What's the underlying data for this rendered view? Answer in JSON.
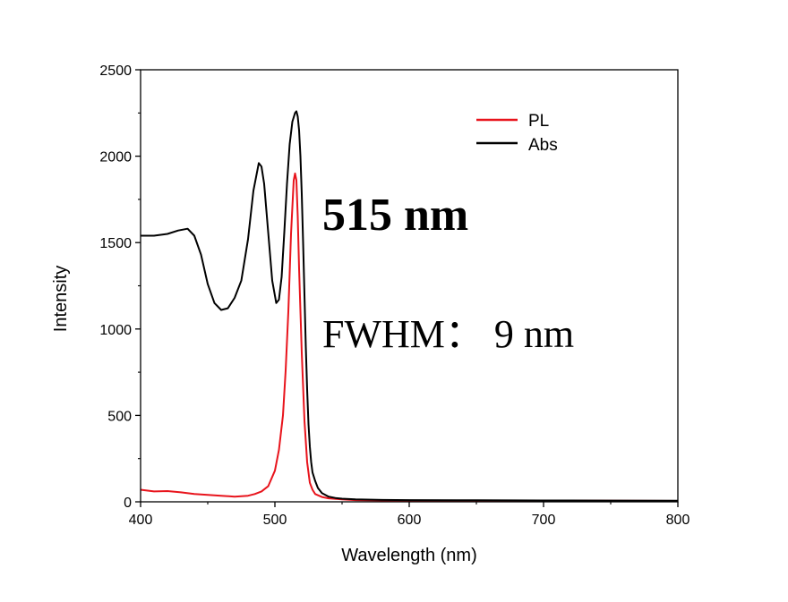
{
  "chart_data": {
    "type": "line",
    "title": "",
    "xlabel": "Wavelength (nm)",
    "ylabel": "Intensity",
    "xlim": [
      400,
      800
    ],
    "ylim": [
      0,
      2500
    ],
    "xticks": [
      400,
      500,
      600,
      700,
      800
    ],
    "yticks": [
      0,
      500,
      1000,
      1500,
      2000,
      2500
    ],
    "grid": false,
    "legend_position": "top-right",
    "annotations": [
      "515 nm",
      "FWHM： 9 nm"
    ],
    "series": [
      {
        "name": "PL",
        "color": "#e8141c",
        "x": [
          400,
          410,
          420,
          430,
          440,
          450,
          460,
          470,
          480,
          485,
          490,
          495,
          500,
          503,
          506,
          508,
          510,
          512,
          514,
          515,
          516,
          517,
          518,
          520,
          522,
          524,
          526,
          528,
          530,
          535,
          540,
          550,
          560,
          580,
          600,
          650,
          700,
          750,
          800
        ],
        "y": [
          70,
          60,
          62,
          55,
          45,
          40,
          35,
          30,
          35,
          45,
          60,
          90,
          180,
          300,
          500,
          760,
          1100,
          1550,
          1860,
          1900,
          1860,
          1650,
          1350,
          860,
          470,
          230,
          110,
          70,
          45,
          28,
          20,
          14,
          10,
          8,
          8,
          7,
          7,
          6,
          5
        ]
      },
      {
        "name": "Abs",
        "color": "#000000",
        "x": [
          400,
          410,
          420,
          428,
          435,
          440,
          445,
          450,
          455,
          460,
          465,
          470,
          475,
          480,
          484,
          488,
          490,
          492,
          495,
          498,
          501,
          503,
          505,
          507,
          509,
          511,
          513,
          515,
          516,
          517,
          518,
          519,
          520,
          521,
          522,
          523,
          524,
          525,
          526,
          527,
          528,
          530,
          532,
          535,
          540,
          545,
          550,
          560,
          580,
          600,
          650,
          700,
          750,
          800
        ],
        "y": [
          1540,
          1540,
          1550,
          1570,
          1580,
          1540,
          1430,
          1260,
          1150,
          1110,
          1120,
          1180,
          1280,
          1520,
          1800,
          1960,
          1940,
          1840,
          1560,
          1280,
          1150,
          1170,
          1300,
          1560,
          1840,
          2070,
          2200,
          2250,
          2260,
          2230,
          2150,
          2000,
          1780,
          1500,
          1200,
          900,
          650,
          450,
          320,
          230,
          170,
          120,
          80,
          50,
          30,
          22,
          18,
          14,
          11,
          10,
          9,
          8,
          7,
          6
        ]
      }
    ]
  }
}
